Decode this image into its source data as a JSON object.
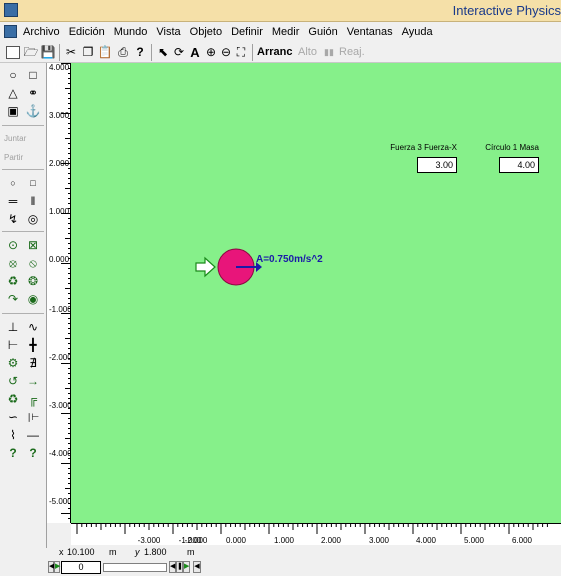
{
  "window": {
    "title": "Interactive Physics"
  },
  "menu": [
    "Archivo",
    "Edición",
    "Mundo",
    "Vista",
    "Objeto",
    "Definir",
    "Medir",
    "Guión",
    "Ventanas",
    "Ayuda"
  ],
  "toolbar": {
    "run_label": "Arranc",
    "stop_label": "Alto",
    "reset_label": "Reaj."
  },
  "tools": {
    "join_label": "Juntar",
    "split_label": "Partir"
  },
  "meters": [
    {
      "label": "Fuerza 3 Fuerza-X",
      "value": "3.00"
    },
    {
      "label": "Círculo 1 Masa",
      "value": "4.00"
    }
  ],
  "vector_label": "A=0.750m/s^2",
  "vruler_labels": [
    "4.000",
    "3.000",
    "2.000",
    "1.000",
    "0.000",
    "-1.000",
    "-2.000",
    "-3.000",
    "-4.000",
    "-5.000"
  ],
  "hruler_labels": [
    "-3.000",
    "-2.000",
    "-1.000",
    "0.000",
    "1.000",
    "2.000",
    "3.000",
    "4.000",
    "5.000",
    "6.000"
  ],
  "coords": {
    "x_label": "x",
    "x_value": "10.100",
    "x_unit": "m",
    "y_label": "y",
    "y_value": "1.800",
    "y_unit": "m"
  },
  "player": {
    "frame": "0",
    "progress": 0.0
  },
  "colors": {
    "canvas": "#86f08a",
    "circle": "#e8157a",
    "vector": "#1a1aa8"
  }
}
